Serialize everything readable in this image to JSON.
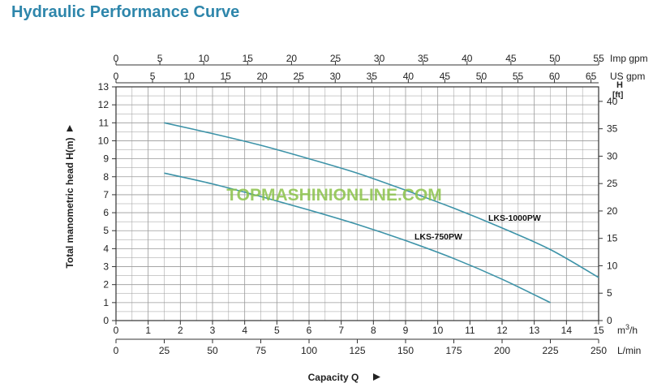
{
  "title": "Hydraulic Performance Curve",
  "watermark": "TOPMASHINIONLINE.COM",
  "colors": {
    "title": "#2e86ab",
    "curve": "#3d93a8",
    "grid": "#9a9a9a",
    "frame": "#333333",
    "watermark": "#8bc34a"
  },
  "chart_data": {
    "type": "line",
    "title": "Hydraulic Performance Curve",
    "xlabel": "Capacity Q",
    "ylabel": "Total manometric head H(m)",
    "xlim": [
      0,
      15
    ],
    "ylim": [
      0,
      13
    ],
    "grid": true,
    "legend": "none (labels on curves)",
    "axes": {
      "bottom_primary": {
        "unit": "m3/h",
        "unit_base": "m",
        "unit_sup": "3",
        "unit_tail": "/h",
        "ticks": [
          "0",
          "1",
          "2",
          "3",
          "4",
          "5",
          "6",
          "7",
          "8",
          "9",
          "10",
          "11",
          "12",
          "13",
          "14",
          "15"
        ]
      },
      "bottom_secondary": {
        "unit": "L/min",
        "ticks": [
          "0",
          "25",
          "50",
          "75",
          "100",
          "125",
          "150",
          "175",
          "200",
          "225",
          "250"
        ]
      },
      "top_imp": {
        "unit": "Imp gpm",
        "ticks": [
          "0",
          "5",
          "10",
          "15",
          "20",
          "25",
          "30",
          "35",
          "40",
          "45",
          "50",
          "55"
        ]
      },
      "top_us": {
        "unit": "US gpm",
        "ticks": [
          "0",
          "5",
          "10",
          "15",
          "20",
          "25",
          "30",
          "35",
          "40",
          "45",
          "50",
          "55",
          "60",
          "65"
        ]
      },
      "left": {
        "label": "Total manometric head H(m)",
        "ticks": [
          "0",
          "1",
          "2",
          "3",
          "4",
          "5",
          "6",
          "7",
          "8",
          "9",
          "10",
          "11",
          "12",
          "13"
        ]
      },
      "right": {
        "unit_line1": "H",
        "unit_line2": "[ft]",
        "ticks": [
          "0",
          "5",
          "10",
          "15",
          "20",
          "25",
          "30",
          "35",
          "40"
        ]
      }
    },
    "series": [
      {
        "name": "LKS-1000PW",
        "x": [
          1.5,
          3,
          4.5,
          6,
          7.5,
          9,
          10.5,
          12,
          13.5,
          15
        ],
        "y": [
          11.0,
          10.4,
          9.75,
          9.0,
          8.2,
          7.25,
          6.25,
          5.15,
          3.95,
          2.4
        ]
      },
      {
        "name": "LKS-750PW",
        "x": [
          1.5,
          3,
          4.5,
          6,
          7.5,
          9,
          10.5,
          12,
          13.5
        ],
        "y": [
          8.2,
          7.6,
          6.9,
          6.15,
          5.35,
          4.45,
          3.45,
          2.3,
          1.0
        ]
      }
    ]
  }
}
